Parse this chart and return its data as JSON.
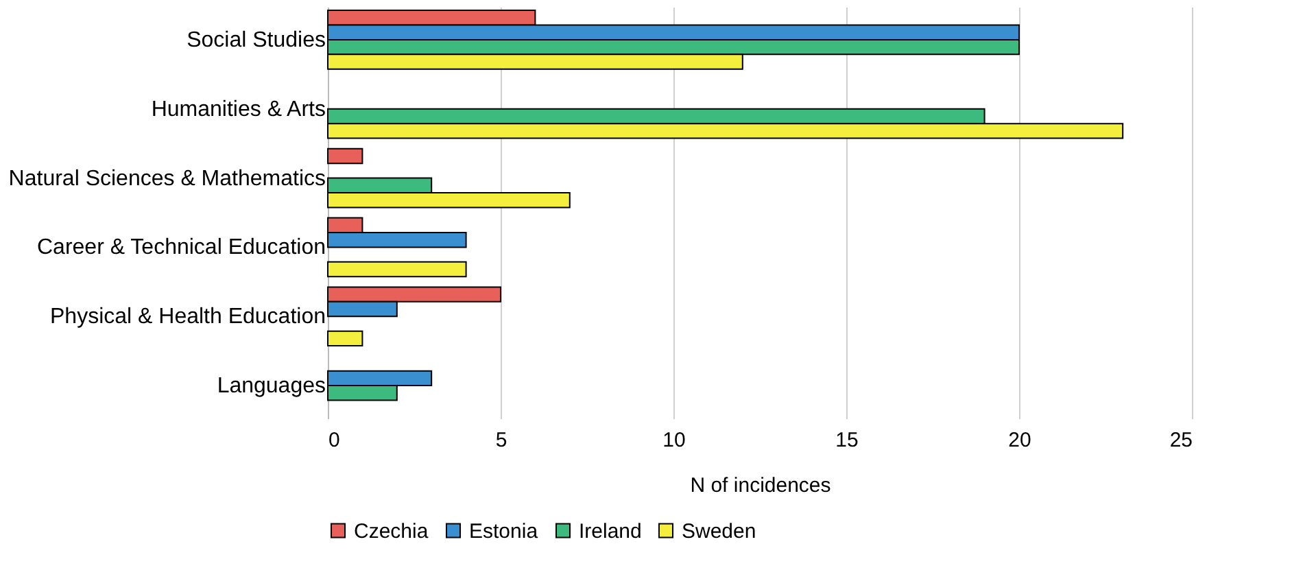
{
  "chart_data": {
    "type": "bar",
    "orientation": "horizontal",
    "xlabel": "N of incidences",
    "categories": [
      "Social Studies",
      "Humanities & Arts",
      "Natural Sciences & Mathematics",
      "Career & Technical Education",
      "Physical & Health Education",
      "Languages"
    ],
    "series": [
      {
        "name": "Czechia",
        "color": "#e8605a",
        "values": [
          6,
          null,
          1,
          1,
          5,
          null
        ]
      },
      {
        "name": "Estonia",
        "color": "#3a8fd1",
        "values": [
          20,
          null,
          null,
          4,
          2,
          3
        ]
      },
      {
        "name": "Ireland",
        "color": "#3dba7e",
        "values": [
          20,
          19,
          3,
          null,
          null,
          2
        ]
      },
      {
        "name": "Sweden",
        "color": "#f3ef3c",
        "values": [
          12,
          23,
          7,
          4,
          1,
          null
        ]
      }
    ],
    "xlim": [
      0,
      25
    ],
    "xticks": [
      0,
      5,
      10,
      15,
      20,
      25
    ],
    "grid": "x",
    "legend": "bottom"
  }
}
